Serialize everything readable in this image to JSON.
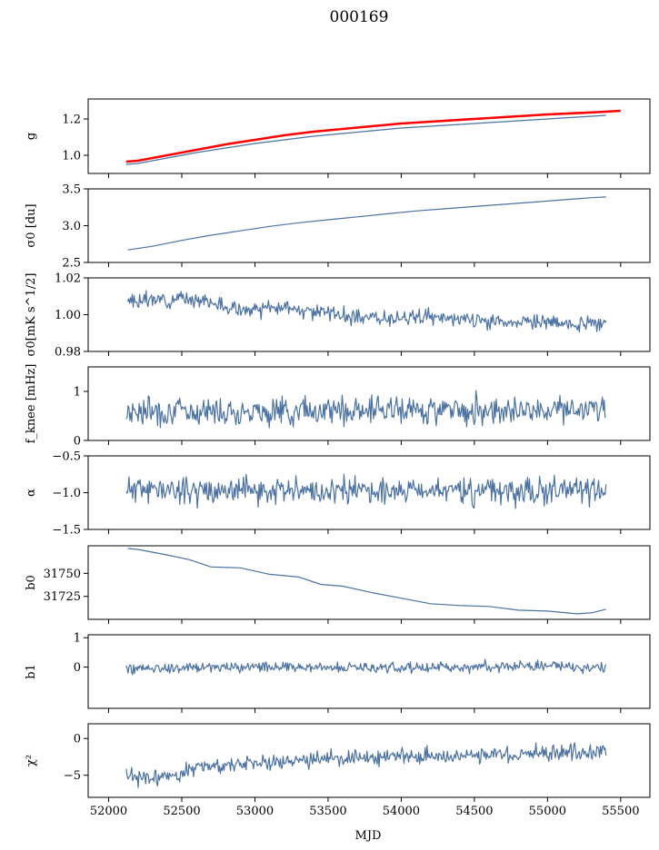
{
  "figure": {
    "title": "000169",
    "xlabel": "MJD",
    "x_ticks": [
      52000,
      52500,
      53000,
      53500,
      54000,
      54500,
      55000,
      55500
    ],
    "x_tick_labels": [
      "52000",
      "52500",
      "53000",
      "53500",
      "54000",
      "54500",
      "55000",
      "55500"
    ],
    "colors": {
      "series": "#4c72a4",
      "highlight": "#ff0000"
    }
  },
  "chart_data": [
    {
      "type": "line",
      "ylabel": "g",
      "ylim": [
        0.9,
        1.31
      ],
      "yticks": [
        1.0,
        1.2
      ],
      "ytick_labels": [
        "1.0",
        "1.2"
      ],
      "series": [
        {
          "x": [
            52120,
            52200,
            52400,
            52600,
            52800,
            53000,
            53200,
            53400,
            53600,
            53800,
            54000,
            54200,
            54400,
            54600,
            54800,
            55000,
            55200,
            55400
          ],
          "y": [
            0.95,
            0.955,
            0.985,
            1.015,
            1.04,
            1.065,
            1.085,
            1.105,
            1.12,
            1.135,
            1.15,
            1.16,
            1.17,
            1.18,
            1.19,
            1.2,
            1.21,
            1.22
          ],
          "color": "#4c72a4"
        },
        {
          "x": [
            52120,
            52200,
            52400,
            52600,
            52800,
            53000,
            53200,
            53400,
            53600,
            53800,
            54000,
            54200,
            54400,
            54600,
            54800,
            55000,
            55200,
            55400,
            55500
          ],
          "y": [
            0.965,
            0.97,
            1.0,
            1.03,
            1.06,
            1.085,
            1.11,
            1.13,
            1.145,
            1.16,
            1.175,
            1.185,
            1.195,
            1.205,
            1.215,
            1.225,
            1.232,
            1.24,
            1.245
          ],
          "color": "#ff0000"
        }
      ]
    },
    {
      "type": "line",
      "ylabel": "σ0 [du]",
      "ylim": [
        2.5,
        3.5
      ],
      "yticks": [
        2.5,
        3.0,
        3.5
      ],
      "ytick_labels": [
        "2.5",
        "3.0",
        "3.5"
      ],
      "series": [
        {
          "x": [
            52130,
            52300,
            52500,
            52700,
            52900,
            53100,
            53300,
            53500,
            53700,
            53900,
            54100,
            54300,
            54500,
            54700,
            54900,
            55100,
            55300,
            55400
          ],
          "y": [
            2.67,
            2.72,
            2.8,
            2.87,
            2.93,
            2.99,
            3.04,
            3.08,
            3.12,
            3.16,
            3.2,
            3.23,
            3.26,
            3.29,
            3.32,
            3.35,
            3.38,
            3.39
          ],
          "color": "#4c72a4"
        }
      ]
    },
    {
      "type": "line",
      "ylabel": "σ0[mK s^1/2]",
      "ylim": [
        0.98,
        1.02
      ],
      "yticks": [
        0.98,
        1.0,
        1.02
      ],
      "ytick_labels": [
        "0.98",
        "1.00",
        "1.02"
      ],
      "series": [
        {
          "x": [
            52130,
            52300,
            52600,
            52800,
            53000,
            53200,
            53500,
            53700,
            54000,
            54300,
            54500,
            54700,
            55000,
            55200,
            55400
          ],
          "y": [
            1.007,
            1.008,
            1.009,
            1.004,
            1.002,
            1.004,
            1.001,
            0.998,
            0.999,
            0.998,
            0.997,
            0.996,
            0.996,
            0.994,
            0.995
          ],
          "color": "#4c72a4",
          "noise": 0.002,
          "seed": 3
        }
      ]
    },
    {
      "type": "line",
      "ylabel": "f_knee [mHz]",
      "ylim": [
        0,
        1.5
      ],
      "yticks": [
        0,
        1
      ],
      "ytick_labels": [
        "0",
        "1"
      ],
      "series": [
        {
          "x": [
            52120,
            53000,
            54000,
            55000,
            55400
          ],
          "y": [
            0.6,
            0.6,
            0.62,
            0.64,
            0.63
          ],
          "color": "#4c72a4",
          "noise": 0.14,
          "seed": 7
        }
      ]
    },
    {
      "type": "line",
      "ylabel": "α",
      "ylim": [
        -1.5,
        -0.5
      ],
      "yticks": [
        -1.5,
        -1.0,
        -0.5
      ],
      "ytick_labels": [
        "−1.5",
        "−1.0",
        "−0.5"
      ],
      "series": [
        {
          "x": [
            52120,
            53000,
            54000,
            55000,
            55400
          ],
          "y": [
            -0.95,
            -0.98,
            -0.97,
            -0.98,
            -0.97
          ],
          "color": "#4c72a4",
          "noise": 0.09,
          "seed": 11
        }
      ]
    },
    {
      "type": "line",
      "ylabel": "b0",
      "ylim": [
        31700,
        31780
      ],
      "yticks": [
        31725,
        31750
      ],
      "ytick_labels": [
        "31725",
        "31750"
      ],
      "series": [
        {
          "x": [
            52130,
            52200,
            52400,
            52550,
            52700,
            52900,
            53100,
            53300,
            53450,
            53600,
            53800,
            54000,
            54200,
            54400,
            54600,
            54800,
            55000,
            55200,
            55300,
            55400
          ],
          "y": [
            31777,
            31776,
            31770,
            31765,
            31757,
            31756,
            31749,
            31746,
            31738,
            31736,
            31729,
            31723,
            31717,
            31715,
            31714,
            31710,
            31709,
            31706,
            31707,
            31711
          ],
          "color": "#4c72a4"
        }
      ]
    },
    {
      "type": "line",
      "ylabel": "b1",
      "ylim": [
        -1.4,
        1.1
      ],
      "yticks": [
        0,
        1
      ],
      "ytick_labels": [
        "0",
        "1"
      ],
      "series": [
        {
          "x": [
            52120,
            53000,
            54000,
            55000,
            55400
          ],
          "y": [
            -0.05,
            0.02,
            -0.02,
            0.05,
            0.0
          ],
          "color": "#4c72a4",
          "noise": 0.09,
          "seed": 19
        }
      ]
    },
    {
      "type": "line",
      "ylabel": "χ²",
      "ylim": [
        -8,
        2
      ],
      "yticks": [
        -5,
        0
      ],
      "ytick_labels": [
        "−5",
        "0"
      ],
      "series": [
        {
          "x": [
            52120,
            52300,
            52600,
            53000,
            53500,
            54000,
            54500,
            55000,
            55400
          ],
          "y": [
            -5.2,
            -5.5,
            -4.0,
            -3.2,
            -2.8,
            -2.5,
            -2.2,
            -2.0,
            -1.8
          ],
          "color": "#4c72a4",
          "noise": 0.55,
          "seed": 23
        }
      ]
    }
  ]
}
